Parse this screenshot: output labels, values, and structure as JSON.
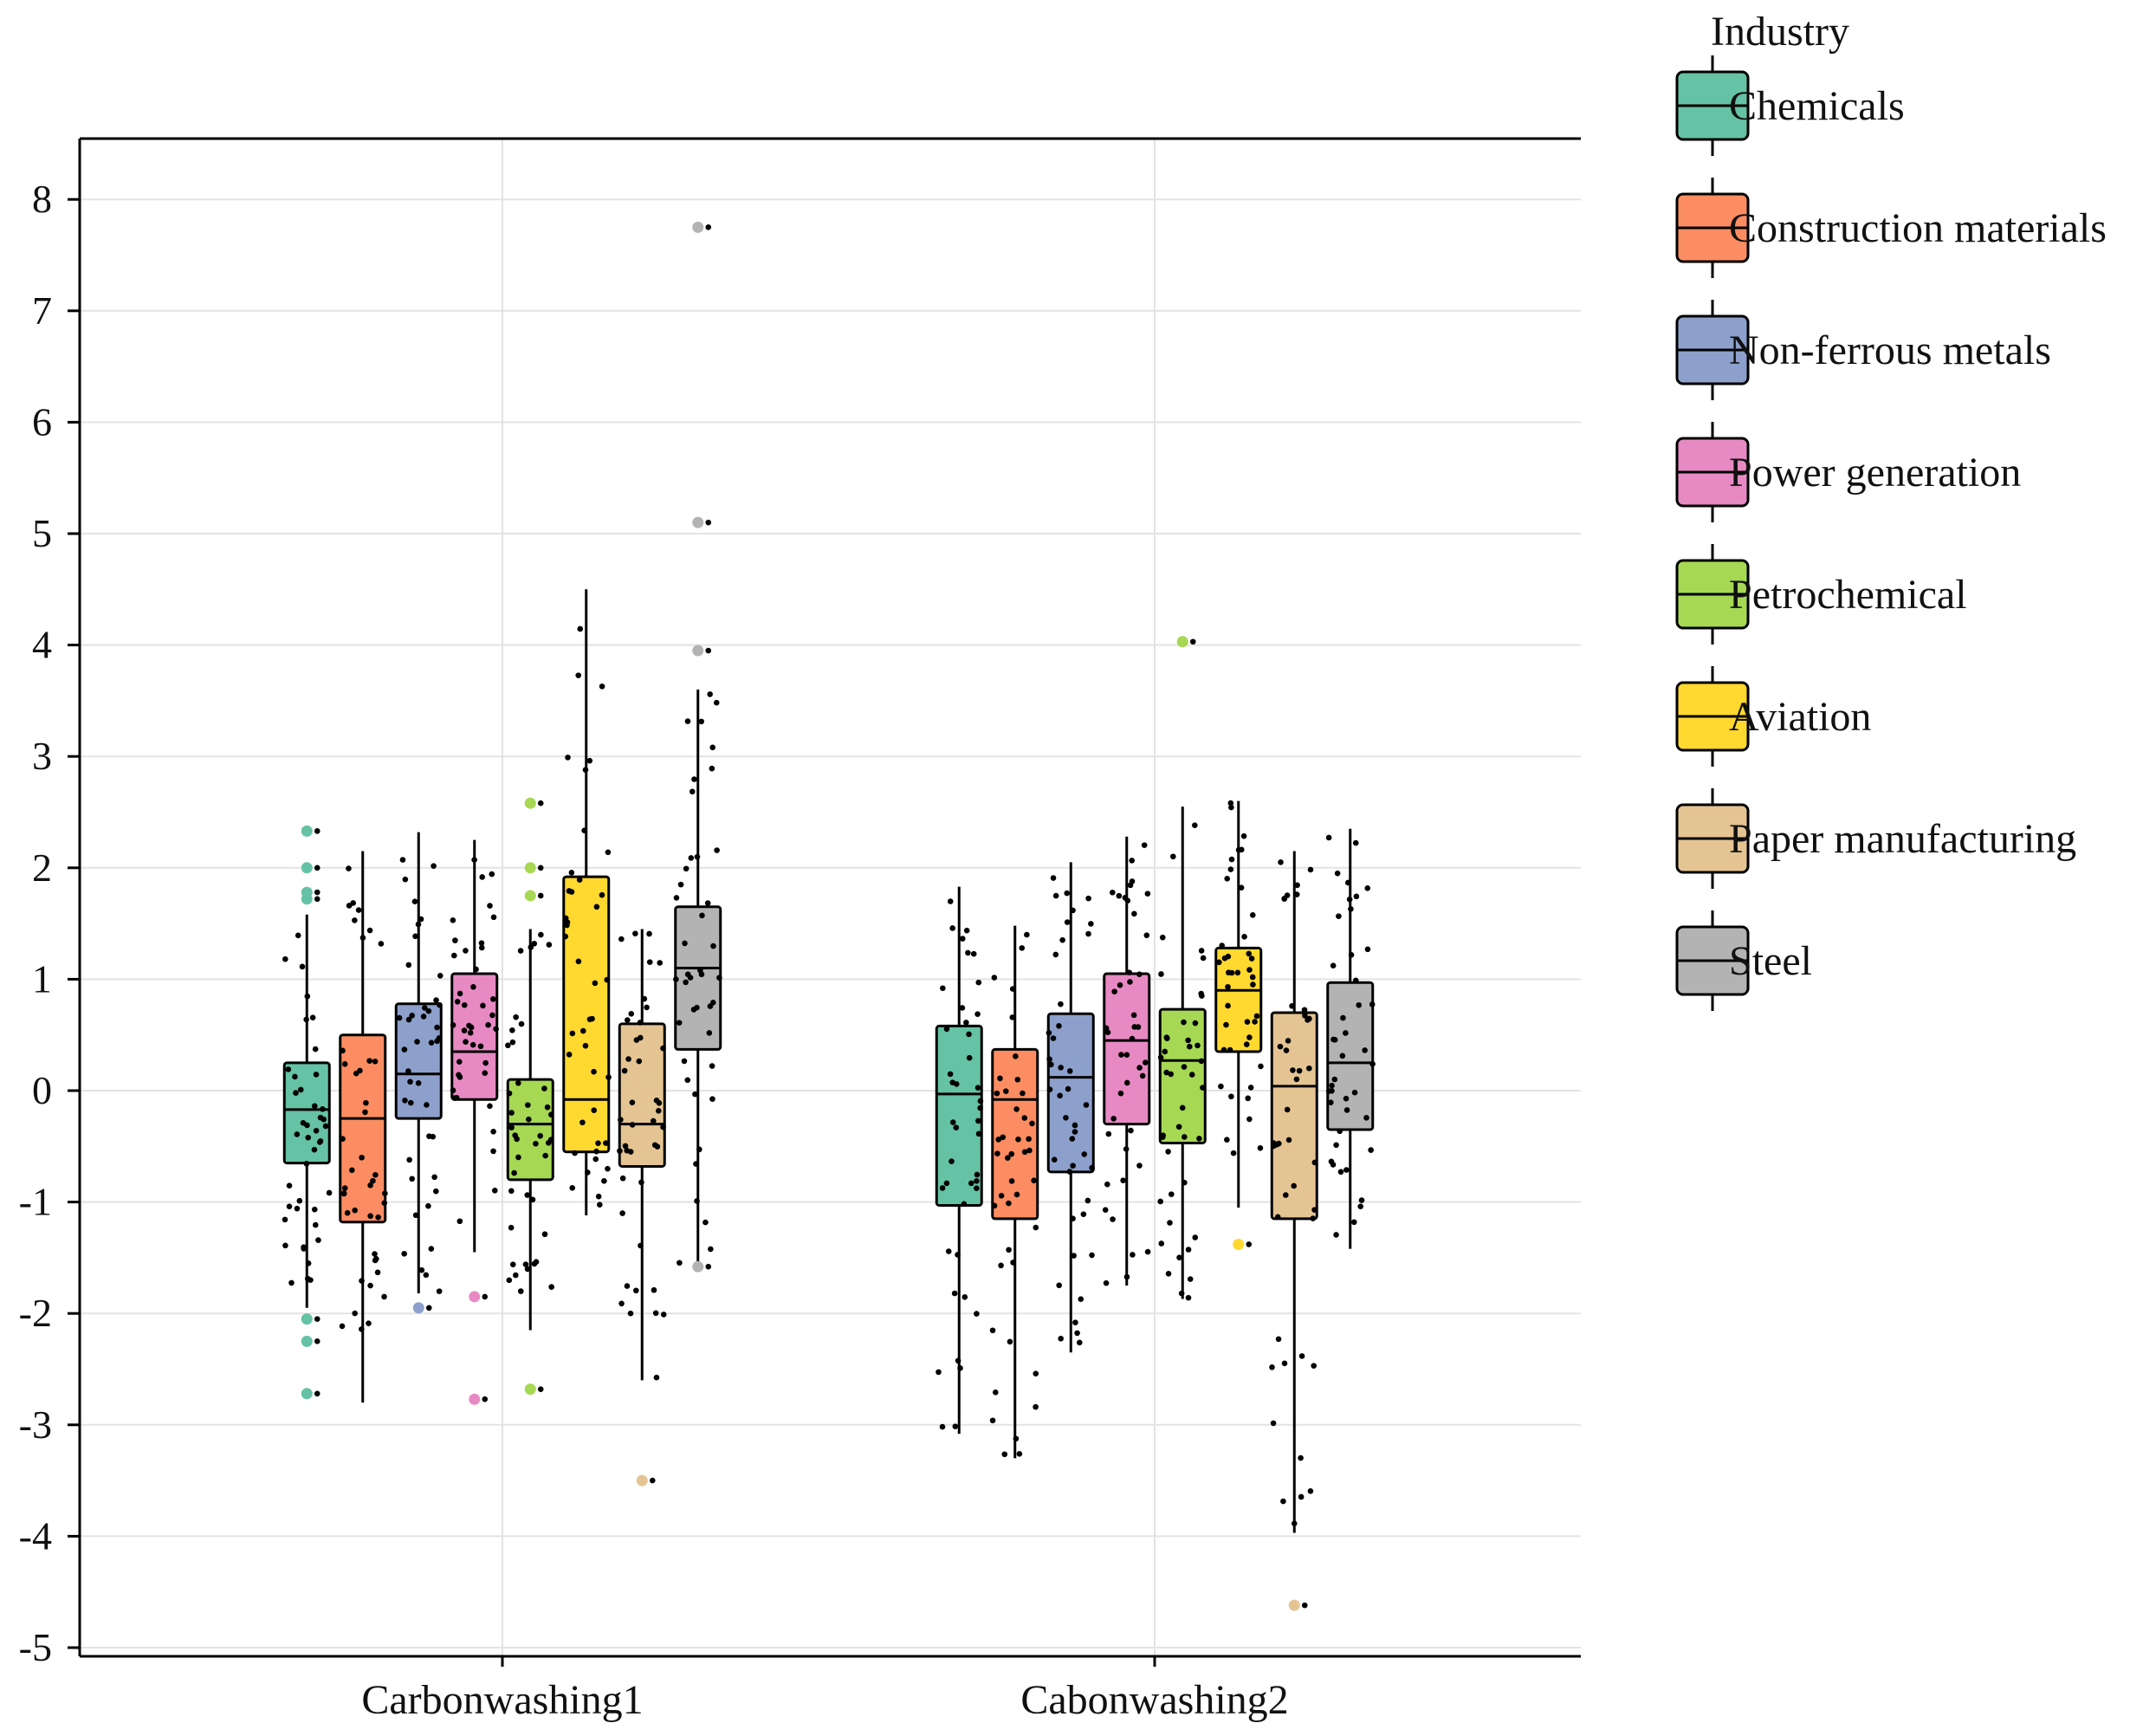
{
  "chart_data": {
    "type": "box",
    "title": "",
    "xlabel": "",
    "ylabel": "",
    "ylim": [
      -5.1,
      8.55
    ],
    "y_ticks": [
      8,
      7,
      6,
      5,
      4,
      3,
      2,
      1,
      0,
      -1,
      -2,
      -3,
      -4,
      -5
    ],
    "y_tick_labels": [
      "8",
      "7",
      "6",
      "5",
      "4",
      "3",
      "2",
      "1",
      "0",
      "-1",
      "-2",
      "-3",
      "-4",
      "-5"
    ],
    "grid": true,
    "legend_position": "right",
    "legend_title": "Industry",
    "categories": [
      "Carbonwashing1",
      "Cabonwashing2"
    ],
    "series": [
      {
        "name": "Chemicals",
        "color": "#66c2a5",
        "boxes": [
          {
            "min": -1.95,
            "q1": -0.65,
            "median": -0.17,
            "q3": 0.25,
            "max": 1.58,
            "outliers": [
              2.33,
              2.0,
              1.78,
              1.72,
              -2.05,
              -2.25,
              -2.72
            ]
          },
          {
            "min": -3.08,
            "q1": -1.03,
            "median": -0.03,
            "q3": 0.58,
            "max": 1.83,
            "outliers": []
          }
        ]
      },
      {
        "name": "Construction materials",
        "color": "#fc8d62",
        "boxes": [
          {
            "min": -2.8,
            "q1": -1.18,
            "median": -0.25,
            "q3": 0.5,
            "max": 2.15,
            "outliers": []
          },
          {
            "min": -3.3,
            "q1": -1.15,
            "median": -0.08,
            "q3": 0.37,
            "max": 1.48,
            "outliers": []
          }
        ]
      },
      {
        "name": "Non-ferrous metals",
        "color": "#8da0cb",
        "boxes": [
          {
            "min": -1.82,
            "q1": -0.25,
            "median": 0.15,
            "q3": 0.78,
            "max": 2.32,
            "outliers": [
              -1.95
            ]
          },
          {
            "min": -2.35,
            "q1": -0.73,
            "median": 0.12,
            "q3": 0.69,
            "max": 2.05,
            "outliers": []
          }
        ]
      },
      {
        "name": "Power generation",
        "color": "#e78ac3",
        "boxes": [
          {
            "min": -1.45,
            "q1": -0.08,
            "median": 0.35,
            "q3": 1.05,
            "max": 2.25,
            "outliers": [
              -1.85,
              -2.77
            ]
          },
          {
            "min": -1.75,
            "q1": -0.3,
            "median": 0.45,
            "q3": 1.05,
            "max": 2.28,
            "outliers": []
          }
        ]
      },
      {
        "name": "Petrochemical",
        "color": "#a6d854",
        "boxes": [
          {
            "min": -2.15,
            "q1": -0.8,
            "median": -0.3,
            "q3": 0.1,
            "max": 1.45,
            "outliers": [
              2.58,
              2.0,
              1.75,
              -2.68
            ]
          },
          {
            "min": -1.87,
            "q1": -0.47,
            "median": 0.27,
            "q3": 0.73,
            "max": 2.55,
            "outliers": [
              4.03
            ]
          }
        ]
      },
      {
        "name": "Aviation",
        "color": "#ffd92f",
        "boxes": [
          {
            "min": -1.12,
            "q1": -0.55,
            "median": -0.08,
            "q3": 1.92,
            "max": 4.5,
            "outliers": []
          },
          {
            "min": -1.05,
            "q1": 0.35,
            "median": 0.9,
            "q3": 1.28,
            "max": 2.6,
            "outliers": [
              -1.38
            ]
          }
        ]
      },
      {
        "name": "Paper manufacturing",
        "color": "#e5c494",
        "boxes": [
          {
            "min": -2.6,
            "q1": -0.68,
            "median": -0.3,
            "q3": 0.6,
            "max": 1.45,
            "outliers": [
              -3.5
            ]
          },
          {
            "min": -3.97,
            "q1": -1.15,
            "median": 0.04,
            "q3": 0.7,
            "max": 2.15,
            "outliers": [
              -4.62
            ]
          }
        ]
      },
      {
        "name": "Steel",
        "color": "#b3b3b3",
        "boxes": [
          {
            "min": -1.58,
            "q1": 0.37,
            "median": 1.1,
            "q3": 1.65,
            "max": 3.6,
            "outliers": [
              7.75,
              5.1,
              3.95,
              -1.58
            ]
          },
          {
            "min": -1.42,
            "q1": -0.35,
            "median": 0.25,
            "q3": 0.97,
            "max": 2.35,
            "outliers": []
          }
        ]
      }
    ]
  }
}
